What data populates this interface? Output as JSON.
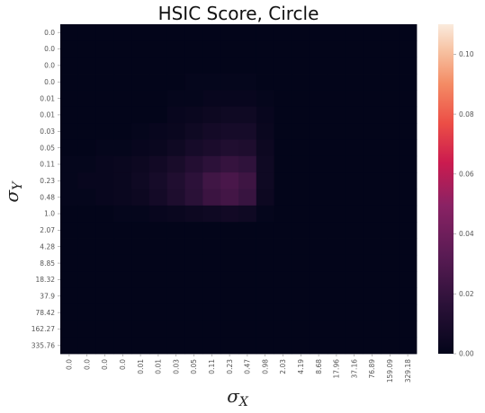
{
  "chart_data": {
    "type": "heatmap",
    "title": "HSIC Score, Circle",
    "xlabel": "σ",
    "xlabel_sub": "X",
    "ylabel": "σ",
    "ylabel_sub": "Y",
    "x_ticks": [
      "0.0",
      "0.0",
      "0.0",
      "0.0",
      "0.01",
      "0.01",
      "0.03",
      "0.05",
      "0.11",
      "0.23",
      "0.47",
      "0.98",
      "2.03",
      "4.19",
      "8.68",
      "17.96",
      "37.16",
      "76.89",
      "159.09",
      "329.18"
    ],
    "y_ticks": [
      "0.0",
      "0.0",
      "0.0",
      "0.0",
      "0.01",
      "0.01",
      "0.03",
      "0.05",
      "0.11",
      "0.23",
      "0.48",
      "1.0",
      "2.07",
      "4.28",
      "8.85",
      "18.32",
      "37.9",
      "78.42",
      "162.27",
      "335.76"
    ],
    "colorbar_ticks": [
      "0.00",
      "0.02",
      "0.04",
      "0.06",
      "0.08",
      "0.10"
    ],
    "vmin": 0,
    "vmax": 0.11,
    "colormap": "rocket",
    "values": [
      [
        0,
        0,
        0,
        0,
        0,
        0,
        0,
        0,
        0,
        0,
        0,
        0,
        0,
        0,
        0,
        0,
        0,
        0,
        0,
        0
      ],
      [
        0,
        0,
        0,
        0,
        0,
        0,
        0,
        0,
        0,
        0,
        0,
        0,
        0,
        0,
        0,
        0,
        0,
        0,
        0,
        0
      ],
      [
        0,
        0,
        0,
        0,
        0,
        0,
        0,
        0,
        0,
        0,
        0,
        0,
        0,
        0,
        0,
        0,
        0,
        0,
        0,
        0
      ],
      [
        0,
        0,
        0,
        0,
        0,
        0,
        0,
        0.001,
        0.001,
        0.001,
        0.001,
        0,
        0,
        0,
        0,
        0,
        0,
        0,
        0,
        0
      ],
      [
        0,
        0,
        0,
        0,
        0,
        0,
        0.001,
        0.001,
        0.002,
        0.002,
        0.002,
        0.001,
        0,
        0,
        0,
        0,
        0,
        0,
        0,
        0
      ],
      [
        0,
        0,
        0,
        0,
        0,
        0,
        0.002,
        0.003,
        0.004,
        0.005,
        0.005,
        0.002,
        0,
        0,
        0,
        0,
        0,
        0,
        0,
        0
      ],
      [
        0,
        0,
        0,
        0,
        0.001,
        0.002,
        0.003,
        0.005,
        0.007,
        0.008,
        0.008,
        0.003,
        0,
        0,
        0,
        0,
        0,
        0,
        0,
        0
      ],
      [
        0,
        0,
        0.001,
        0.001,
        0.002,
        0.003,
        0.005,
        0.008,
        0.01,
        0.012,
        0.011,
        0.004,
        0,
        0,
        0,
        0,
        0,
        0,
        0,
        0
      ],
      [
        0.001,
        0.001,
        0.002,
        0.003,
        0.004,
        0.006,
        0.009,
        0.013,
        0.017,
        0.02,
        0.018,
        0.005,
        0,
        0,
        0,
        0,
        0,
        0,
        0,
        0
      ],
      [
        0.001,
        0.002,
        0.002,
        0.003,
        0.005,
        0.008,
        0.012,
        0.017,
        0.024,
        0.027,
        0.023,
        0.005,
        0,
        0,
        0,
        0,
        0,
        0,
        0,
        0
      ],
      [
        0.001,
        0.001,
        0.002,
        0.003,
        0.004,
        0.007,
        0.011,
        0.016,
        0.022,
        0.025,
        0.021,
        0.004,
        0,
        0,
        0,
        0,
        0,
        0,
        0,
        0
      ],
      [
        0,
        0,
        0,
        0.001,
        0.001,
        0.002,
        0.003,
        0.004,
        0.005,
        0.006,
        0.005,
        0.001,
        0,
        0,
        0,
        0,
        0,
        0,
        0,
        0
      ],
      [
        0,
        0,
        0,
        0,
        0,
        0,
        0,
        0,
        0,
        0,
        0,
        0,
        0,
        0,
        0,
        0,
        0,
        0,
        0,
        0
      ],
      [
        0,
        0,
        0,
        0,
        0,
        0,
        0,
        0,
        0,
        0,
        0,
        0,
        0,
        0,
        0,
        0,
        0,
        0,
        0,
        0
      ],
      [
        0,
        0,
        0,
        0,
        0,
        0,
        0,
        0,
        0,
        0,
        0,
        0,
        0,
        0,
        0,
        0,
        0,
        0,
        0,
        0
      ],
      [
        0,
        0,
        0,
        0,
        0,
        0,
        0,
        0,
        0,
        0,
        0,
        0,
        0,
        0,
        0,
        0,
        0,
        0,
        0,
        0
      ],
      [
        0,
        0,
        0,
        0,
        0,
        0,
        0,
        0,
        0,
        0,
        0,
        0,
        0,
        0,
        0,
        0,
        0,
        0,
        0,
        0
      ],
      [
        0,
        0,
        0,
        0,
        0,
        0,
        0,
        0,
        0,
        0,
        0,
        0,
        0,
        0,
        0,
        0,
        0,
        0,
        0,
        0
      ],
      [
        0,
        0,
        0,
        0,
        0,
        0,
        0,
        0,
        0,
        0,
        0,
        0,
        0,
        0,
        0,
        0,
        0,
        0,
        0,
        0
      ],
      [
        0,
        0,
        0,
        0,
        0,
        0,
        0,
        0,
        0,
        0,
        0,
        0,
        0,
        0,
        0,
        0,
        0,
        0,
        0,
        0
      ]
    ],
    "grid": false,
    "colorbar": "right"
  }
}
